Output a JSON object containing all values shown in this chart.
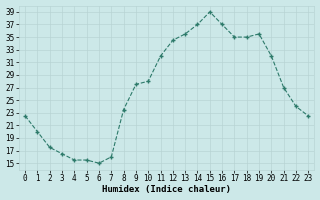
{
  "x": [
    0,
    1,
    2,
    3,
    4,
    5,
    6,
    7,
    8,
    9,
    10,
    11,
    12,
    13,
    14,
    15,
    16,
    17,
    18,
    19,
    20,
    21,
    22,
    23
  ],
  "y": [
    22.5,
    20,
    17.5,
    16.5,
    15.5,
    15.5,
    15,
    16,
    23.5,
    27.5,
    28,
    32,
    34.5,
    35.5,
    37,
    39,
    37,
    35,
    35,
    35.5,
    32,
    27,
    24,
    22.5
  ],
  "xlabel": "Humidex (Indice chaleur)",
  "xlim": [
    -0.5,
    23.5
  ],
  "ylim": [
    14,
    40
  ],
  "yticks": [
    15,
    17,
    19,
    21,
    23,
    25,
    27,
    29,
    31,
    33,
    35,
    37,
    39
  ],
  "xticks": [
    0,
    1,
    2,
    3,
    4,
    5,
    6,
    7,
    8,
    9,
    10,
    11,
    12,
    13,
    14,
    15,
    16,
    17,
    18,
    19,
    20,
    21,
    22,
    23
  ],
  "line_color": "#2d7a6a",
  "marker": "+",
  "markersize": 3,
  "linewidth": 0.8,
  "bg_color": "#cce8e8",
  "grid_color": "#b8d4d4",
  "label_fontsize": 6.5,
  "tick_fontsize": 5.5
}
